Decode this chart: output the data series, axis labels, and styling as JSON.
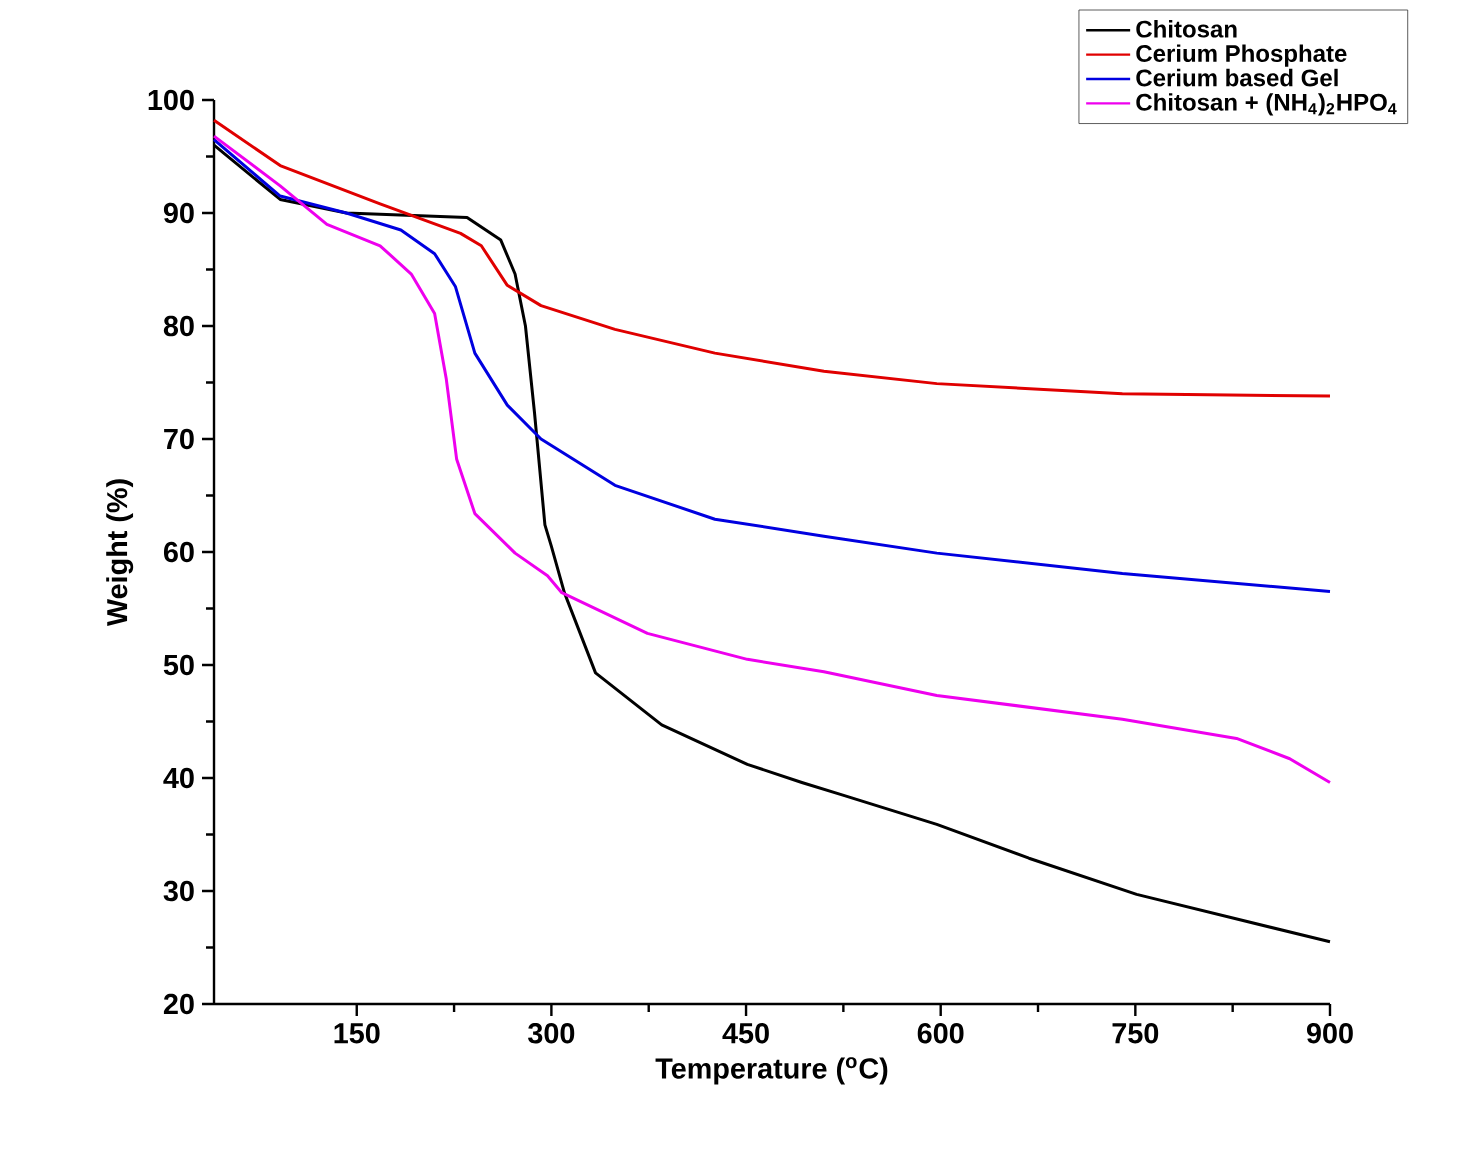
{
  "chart_data": {
    "type": "line",
    "xlabel": "Temperature ($^{o}$C)",
    "ylabel": "Weight (%)",
    "xlim": [
      40,
      900
    ],
    "xticks": [
      150,
      300,
      450,
      600,
      750,
      900
    ],
    "ylim": [
      20,
      100
    ],
    "yticks": [
      20,
      30,
      40,
      50,
      60,
      70,
      80,
      90,
      100
    ],
    "grid": false,
    "legend": "top right",
    "line_style": "solid",
    "marker": "none",
    "series": [
      {
        "name": "Chitosan",
        "color": "#000000",
        "x": [
          40,
          91,
          142,
          235,
          261,
          272,
          280,
          287,
          295,
          300,
          310,
          334,
          385,
          451,
          493,
          524,
          597,
          668,
          751,
          900
        ],
        "values": [
          96,
          91.2,
          90,
          89.6,
          87.6,
          84.6,
          80,
          72.3,
          62.4,
          60.5,
          56.4,
          49.3,
          44.7,
          41.2,
          39.6,
          38.5,
          35.9,
          32.9,
          29.7,
          25.5
        ]
      },
      {
        "name": "Cerium Phosphate",
        "color": "#e00000",
        "x": [
          40,
          91,
          168,
          230,
          246,
          266,
          292,
          349,
          426,
          510,
          597,
          740,
          900
        ],
        "values": [
          98.2,
          94.2,
          90.8,
          88.2,
          87.1,
          83.6,
          81.8,
          79.7,
          77.6,
          76,
          74.9,
          74,
          73.8
        ]
      },
      {
        "name": "Cerium based Gel",
        "color": "#0000e0",
        "x": [
          40,
          91,
          142,
          184,
          210,
          226,
          241,
          266,
          292,
          349,
          426,
          510,
          597,
          740,
          900
        ],
        "values": [
          96.5,
          91.5,
          90,
          88.5,
          86.4,
          83.5,
          77.6,
          73,
          70,
          65.9,
          62.9,
          61.4,
          59.9,
          58.1,
          56.5
        ]
      },
      {
        "name": "Chitosan + (NH$_{4}$)$_{2}$HPO$_{4}$",
        "color": "#ee00ee",
        "x": [
          40,
          91,
          127,
          168,
          192,
          210,
          219,
          227,
          241,
          272,
          297,
          308,
          374,
          451,
          510,
          597,
          740,
          828,
          869,
          900
        ],
        "values": [
          96.8,
          92.4,
          89,
          87.1,
          84.6,
          81.1,
          75.3,
          68.2,
          63.4,
          59.9,
          57.9,
          56.4,
          52.8,
          50.5,
          49.4,
          47.3,
          45.2,
          43.5,
          41.7,
          39.6
        ]
      }
    ]
  }
}
